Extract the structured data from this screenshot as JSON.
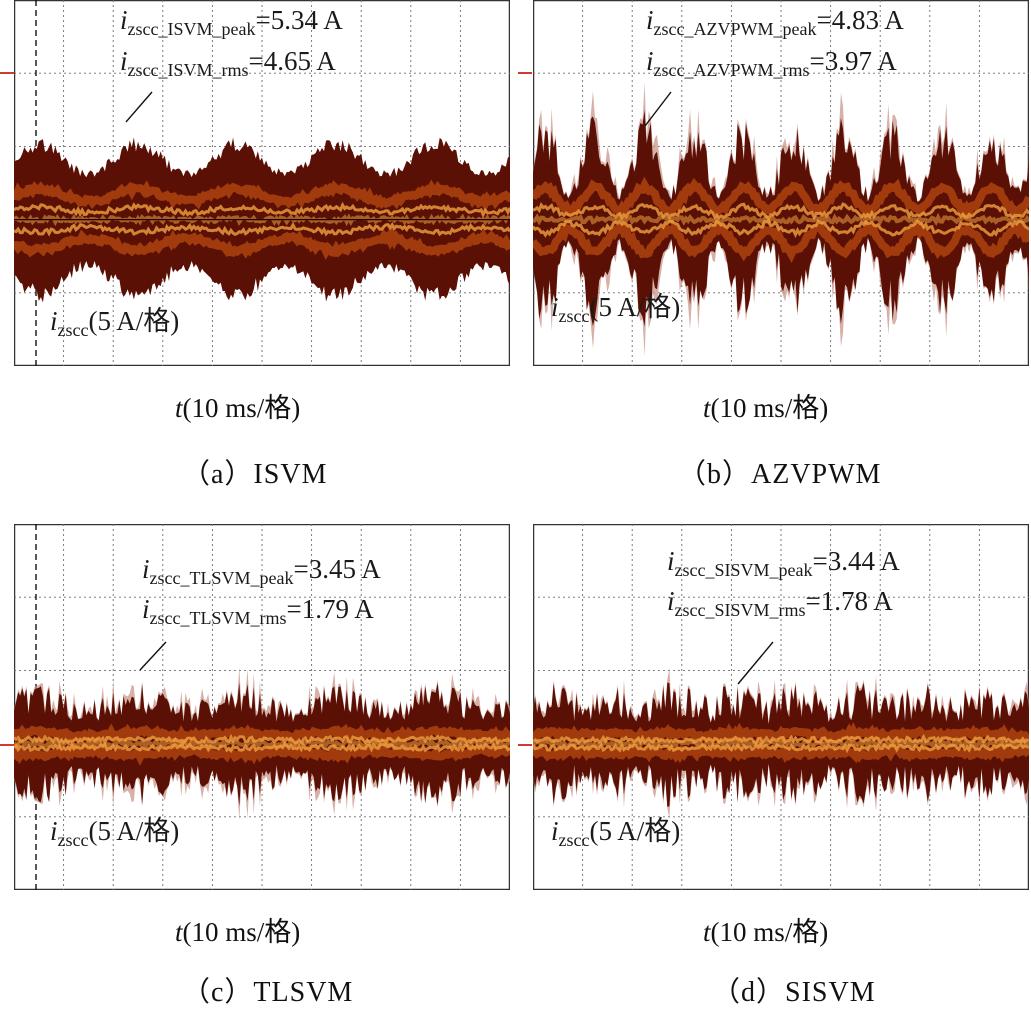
{
  "chart_data": [
    {
      "type": "line",
      "title": "ISVM",
      "caption": "（a）ISVM",
      "xlabel": "t(10 ms/格)",
      "x_unit": "t",
      "x_scale": "(10 ms/格)",
      "ylabel": "izscc(5 A/格)",
      "y_symbol": "i",
      "y_sub": "zscc",
      "y_scale": "(5 A/格)",
      "grid": true,
      "series": [
        {
          "name": "izscc",
          "peak_A": 5.34,
          "rms_A": 4.65
        }
      ],
      "annotations": [
        {
          "sym": "i",
          "sub": "zscc_ISVM_peak",
          "value": "=5.34 A"
        },
        {
          "sym": "i",
          "sub": "zscc_ISVM_rms",
          "value": "=4.65 A"
        }
      ]
    },
    {
      "type": "line",
      "title": "AZVPWM",
      "caption": "（b）AZVPWM",
      "xlabel": "t(10 ms/格)",
      "x_unit": "t",
      "x_scale": "(10 ms/格)",
      "ylabel": "izscc(5 A/格)",
      "y_symbol": "i",
      "y_sub": "zscc",
      "y_scale": "(5 A/格)",
      "grid": true,
      "series": [
        {
          "name": "izscc",
          "peak_A": 4.83,
          "rms_A": 3.97
        }
      ],
      "annotations": [
        {
          "sym": "i",
          "sub": "zscc_AZVPWM_peak",
          "value": "=4.83 A"
        },
        {
          "sym": "i",
          "sub": "zscc_AZVPWM_rms",
          "value": "=3.97 A"
        }
      ]
    },
    {
      "type": "line",
      "title": "TLSVM",
      "caption": "（c）TLSVM",
      "xlabel": "t(10 ms/格)",
      "x_unit": "t",
      "x_scale": "(10 ms/格)",
      "ylabel": "izscc(5 A/格)",
      "y_symbol": "i",
      "y_sub": "zscc",
      "y_scale": "(5 A/格)",
      "grid": true,
      "series": [
        {
          "name": "izscc",
          "peak_A": 3.45,
          "rms_A": 1.79
        }
      ],
      "annotations": [
        {
          "sym": "i",
          "sub": "zscc_TLSVM_peak",
          "value": "=3.45 A"
        },
        {
          "sym": "i",
          "sub": "zscc_TLSVM_rms",
          "value": "=1.79 A"
        }
      ]
    },
    {
      "type": "line",
      "title": "SISVM",
      "caption": "（d）SISVM",
      "xlabel": "t(10 ms/格)",
      "x_unit": "t",
      "x_scale": "(10 ms/格)",
      "ylabel": "izscc(5 A/格)",
      "y_symbol": "i",
      "y_sub": "zscc",
      "y_scale": "(5 A/格)",
      "grid": true,
      "series": [
        {
          "name": "izscc",
          "peak_A": 3.44,
          "rms_A": 1.78
        }
      ],
      "annotations": [
        {
          "sym": "i",
          "sub": "zscc_SISVM_peak",
          "value": "=3.44 A"
        },
        {
          "sym": "i",
          "sub": "zscc_SISVM_rms",
          "value": "=1.78 A"
        }
      ]
    }
  ],
  "colors": {
    "trace_dark": "#5a1005",
    "trace_mid": "#a8400e",
    "trace_light": "#f0a040",
    "envelope": "#c9958a",
    "grid": "#6d6d6d",
    "marker": "#d03a30"
  }
}
